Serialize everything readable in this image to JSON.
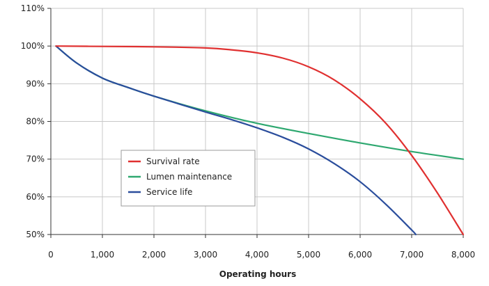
{
  "chart_data": {
    "type": "line",
    "title": "",
    "xlabel": "Operating hours",
    "ylabel": "",
    "xlim": [
      0,
      8000
    ],
    "ylim": [
      50,
      110
    ],
    "x_ticks": [
      0,
      1000,
      2000,
      3000,
      4000,
      5000,
      6000,
      7000,
      8000
    ],
    "x_tick_labels": [
      "0",
      "1,000",
      "2,000",
      "3,000",
      "4,000",
      "5,000",
      "6,000",
      "7,000",
      "8,000"
    ],
    "y_ticks": [
      50,
      60,
      70,
      80,
      90,
      100,
      110
    ],
    "y_tick_labels": [
      "50%",
      "60%",
      "70%",
      "80%",
      "90%",
      "100%",
      "110%"
    ],
    "grid": true,
    "legend_position": "lower-left",
    "series": [
      {
        "name": "Survival rate",
        "color": "#e03030",
        "x": [
          100,
          1000,
          2000,
          3000,
          3500,
          4000,
          4500,
          5000,
          5500,
          6000,
          6500,
          7000,
          7500,
          8000
        ],
        "y": [
          100,
          99.9,
          99.8,
          99.5,
          99.0,
          98.2,
          96.8,
          94.5,
          91.0,
          86.0,
          79.5,
          71.0,
          61.0,
          50.0
        ]
      },
      {
        "name": "Lumen maintenance",
        "color": "#2ea870",
        "x": [
          100,
          500,
          1000,
          1500,
          2000,
          3000,
          4000,
          5000,
          6000,
          7000,
          8000
        ],
        "y": [
          100,
          95.5,
          91.5,
          89.0,
          86.7,
          82.8,
          79.5,
          76.8,
          74.3,
          72.0,
          70.0
        ]
      },
      {
        "name": "Service life",
        "color": "#2a4d9c",
        "x": [
          100,
          500,
          1000,
          1500,
          2000,
          3000,
          3500,
          4000,
          4500,
          5000,
          5500,
          6000,
          6500,
          7000,
          7080
        ],
        "y": [
          100,
          95.5,
          91.5,
          89.0,
          86.7,
          82.5,
          80.5,
          78.3,
          75.8,
          72.7,
          68.8,
          64.0,
          58.0,
          51.2,
          50.0
        ]
      }
    ]
  }
}
